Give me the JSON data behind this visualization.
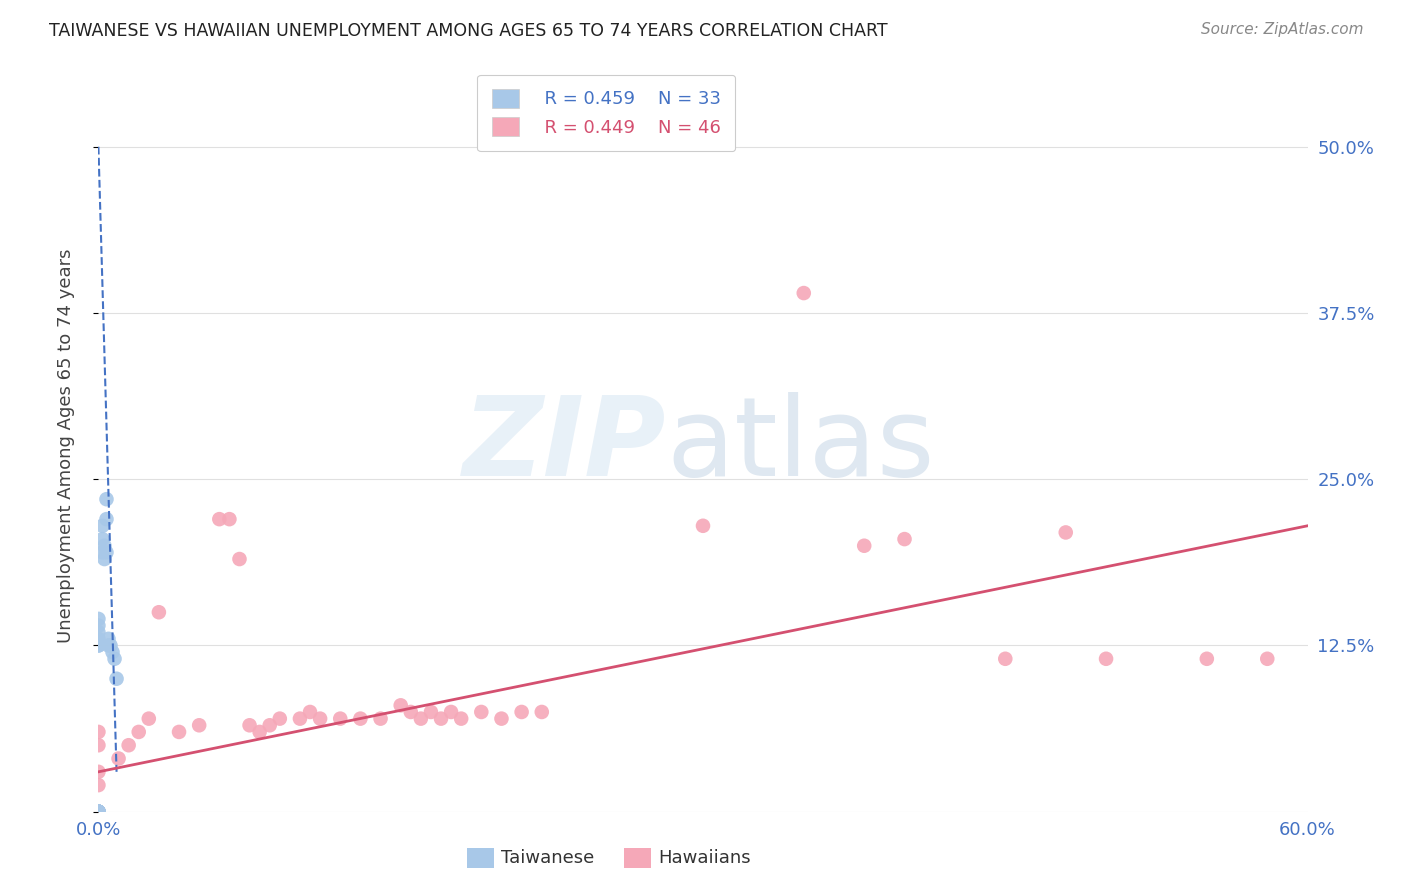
{
  "title": "TAIWANESE VS HAWAIIAN UNEMPLOYMENT AMONG AGES 65 TO 74 YEARS CORRELATION CHART",
  "source": "Source: ZipAtlas.com",
  "ylabel": "Unemployment Among Ages 65 to 74 years",
  "xlim": [
    0.0,
    0.6
  ],
  "ylim": [
    0.0,
    0.55
  ],
  "xticks": [
    0.0,
    0.1,
    0.2,
    0.3,
    0.4,
    0.5,
    0.6
  ],
  "xticklabels": [
    "0.0%",
    "",
    "",
    "",
    "",
    "",
    "60.0%"
  ],
  "yticks": [
    0.0,
    0.125,
    0.25,
    0.375,
    0.5
  ],
  "yticklabels": [
    "",
    "12.5%",
    "25.0%",
    "37.5%",
    "50.0%"
  ],
  "grid_color": "#e0e0e0",
  "background_color": "#ffffff",
  "taiwanese_color": "#a8c8e8",
  "hawaiian_color": "#f5a8b8",
  "taiwanese_line_color": "#4472c4",
  "hawaiian_line_color": "#d45070",
  "legend_R_taiwanese": "R = 0.459",
  "legend_N_taiwanese": "N = 33",
  "legend_R_hawaiian": "R = 0.449",
  "legend_N_hawaiian": "N = 46",
  "taiwanese_x": [
    0.0,
    0.0,
    0.0,
    0.0,
    0.0,
    0.0,
    0.0,
    0.0,
    0.0,
    0.0,
    0.0,
    0.0,
    0.0,
    0.0,
    0.0,
    0.0,
    0.0,
    0.0,
    0.0,
    0.002,
    0.002,
    0.002,
    0.003,
    0.003,
    0.004,
    0.004,
    0.004,
    0.005,
    0.005,
    0.006,
    0.007,
    0.008,
    0.009
  ],
  "taiwanese_y": [
    0.0,
    0.0,
    0.0,
    0.0,
    0.0,
    0.0,
    0.0,
    0.0,
    0.0,
    0.0,
    0.0,
    0.0,
    0.0,
    0.125,
    0.125,
    0.13,
    0.135,
    0.14,
    0.145,
    0.195,
    0.205,
    0.215,
    0.19,
    0.2,
    0.195,
    0.22,
    0.235,
    0.125,
    0.13,
    0.125,
    0.12,
    0.115,
    0.1
  ],
  "hawaiian_x": [
    0.0,
    0.0,
    0.0,
    0.0,
    0.0,
    0.0,
    0.01,
    0.015,
    0.02,
    0.025,
    0.03,
    0.04,
    0.05,
    0.06,
    0.065,
    0.07,
    0.075,
    0.08,
    0.085,
    0.09,
    0.1,
    0.105,
    0.11,
    0.12,
    0.13,
    0.14,
    0.15,
    0.155,
    0.16,
    0.165,
    0.17,
    0.175,
    0.18,
    0.19,
    0.2,
    0.21,
    0.22,
    0.3,
    0.35,
    0.38,
    0.4,
    0.45,
    0.48,
    0.5,
    0.55,
    0.58
  ],
  "hawaiian_y": [
    0.0,
    0.0,
    0.02,
    0.03,
    0.05,
    0.06,
    0.04,
    0.05,
    0.06,
    0.07,
    0.15,
    0.06,
    0.065,
    0.22,
    0.22,
    0.19,
    0.065,
    0.06,
    0.065,
    0.07,
    0.07,
    0.075,
    0.07,
    0.07,
    0.07,
    0.07,
    0.08,
    0.075,
    0.07,
    0.075,
    0.07,
    0.075,
    0.07,
    0.075,
    0.07,
    0.075,
    0.075,
    0.215,
    0.39,
    0.2,
    0.205,
    0.115,
    0.21,
    0.115,
    0.115,
    0.115
  ],
  "tw_trend_x0": 0.0,
  "tw_trend_x1": 0.009,
  "tw_trend_y0": 0.5,
  "tw_trend_y1": 0.03,
  "hw_trend_x0": 0.0,
  "hw_trend_x1": 0.6,
  "hw_trend_y0": 0.03,
  "hw_trend_y1": 0.215
}
